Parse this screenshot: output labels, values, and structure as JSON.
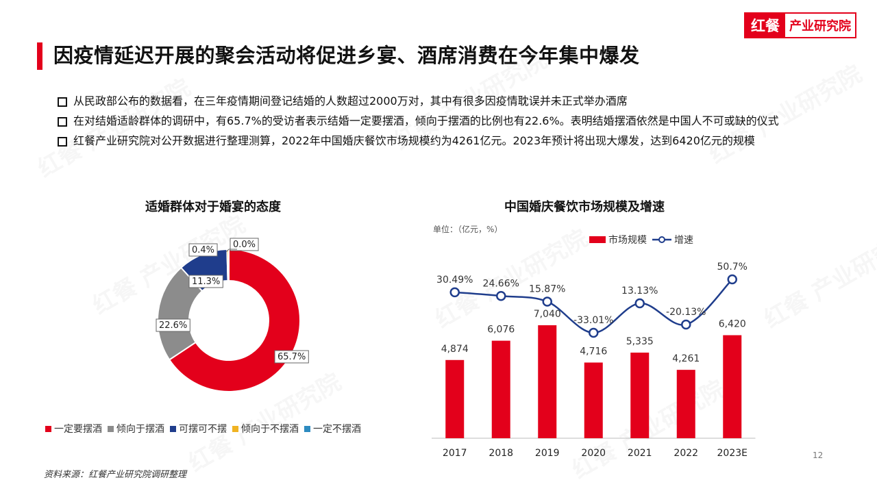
{
  "logo": {
    "brand": "红餐",
    "sub": "产业研究院"
  },
  "title": "因疫情延迟开展的聚会活动将促进乡宴、酒席消费在今年集中爆发",
  "bullets": [
    "从民政部公布的数据看，在三年疫情期间登记结婚的人数超过2000万对，其中有很多因疫情耽误并未正式举办酒席",
    "在对结婚适龄群体的调研中，有65.7%的受访者表示结婚一定要摆酒，倾向于摆酒的比例也有22.6%。表明结婚摆酒依然是中国人不可或缺的仪式",
    "红餐产业研究院对公开数据进行整理测算，2022年中国婚庆餐饮市场规模约为4261亿元。2023年预计将出现大爆发，达到6420亿元的规模"
  ],
  "watermark": "红餐 产业研究院",
  "source": "资料来源：红餐产业研究院调研整理",
  "page_number": "12",
  "chart_data": [
    {
      "type": "pie",
      "title": "适婚群体对于婚宴的态度",
      "donut": true,
      "labels": [
        "一定要摆酒",
        "倾向于摆酒",
        "可摆可不摆",
        "倾向于不摆酒",
        "一定不摆酒"
      ],
      "values": [
        65.7,
        22.6,
        11.3,
        0.4,
        0.0
      ],
      "value_labels": [
        "65.7%",
        "22.6%",
        "11.3%",
        "0.4%",
        "0.0%"
      ],
      "colors": [
        "#e3001b",
        "#8c8c8c",
        "#1f3d8c",
        "#f0b323",
        "#2e8bc0"
      ],
      "legend_position": "bottom"
    },
    {
      "type": "bar+line",
      "title": "中国婚庆餐饮市场规模及增速",
      "unit": "单位：（亿元，%）",
      "categories": [
        "2017",
        "2018",
        "2019",
        "2020",
        "2021",
        "2022",
        "2023E"
      ],
      "series": [
        {
          "name": "市场规模",
          "type": "bar",
          "color": "#e3001b",
          "values": [
            4874,
            6076,
            7040,
            4716,
            5335,
            4261,
            6420
          ],
          "labels": [
            "4,874",
            "6,076",
            "7,040",
            "4,716",
            "5,335",
            "4,261",
            "6,420"
          ]
        },
        {
          "name": "增速",
          "type": "line",
          "color": "#1f3d8c",
          "values": [
            30.49,
            24.66,
            15.87,
            -33.01,
            13.13,
            -20.13,
            50.7
          ],
          "labels": [
            "30.49%",
            "24.66%",
            "15.87%",
            "-33.01%",
            "13.13%",
            "-20.13%",
            "50.7%"
          ]
        }
      ],
      "legend_position": "top"
    }
  ]
}
